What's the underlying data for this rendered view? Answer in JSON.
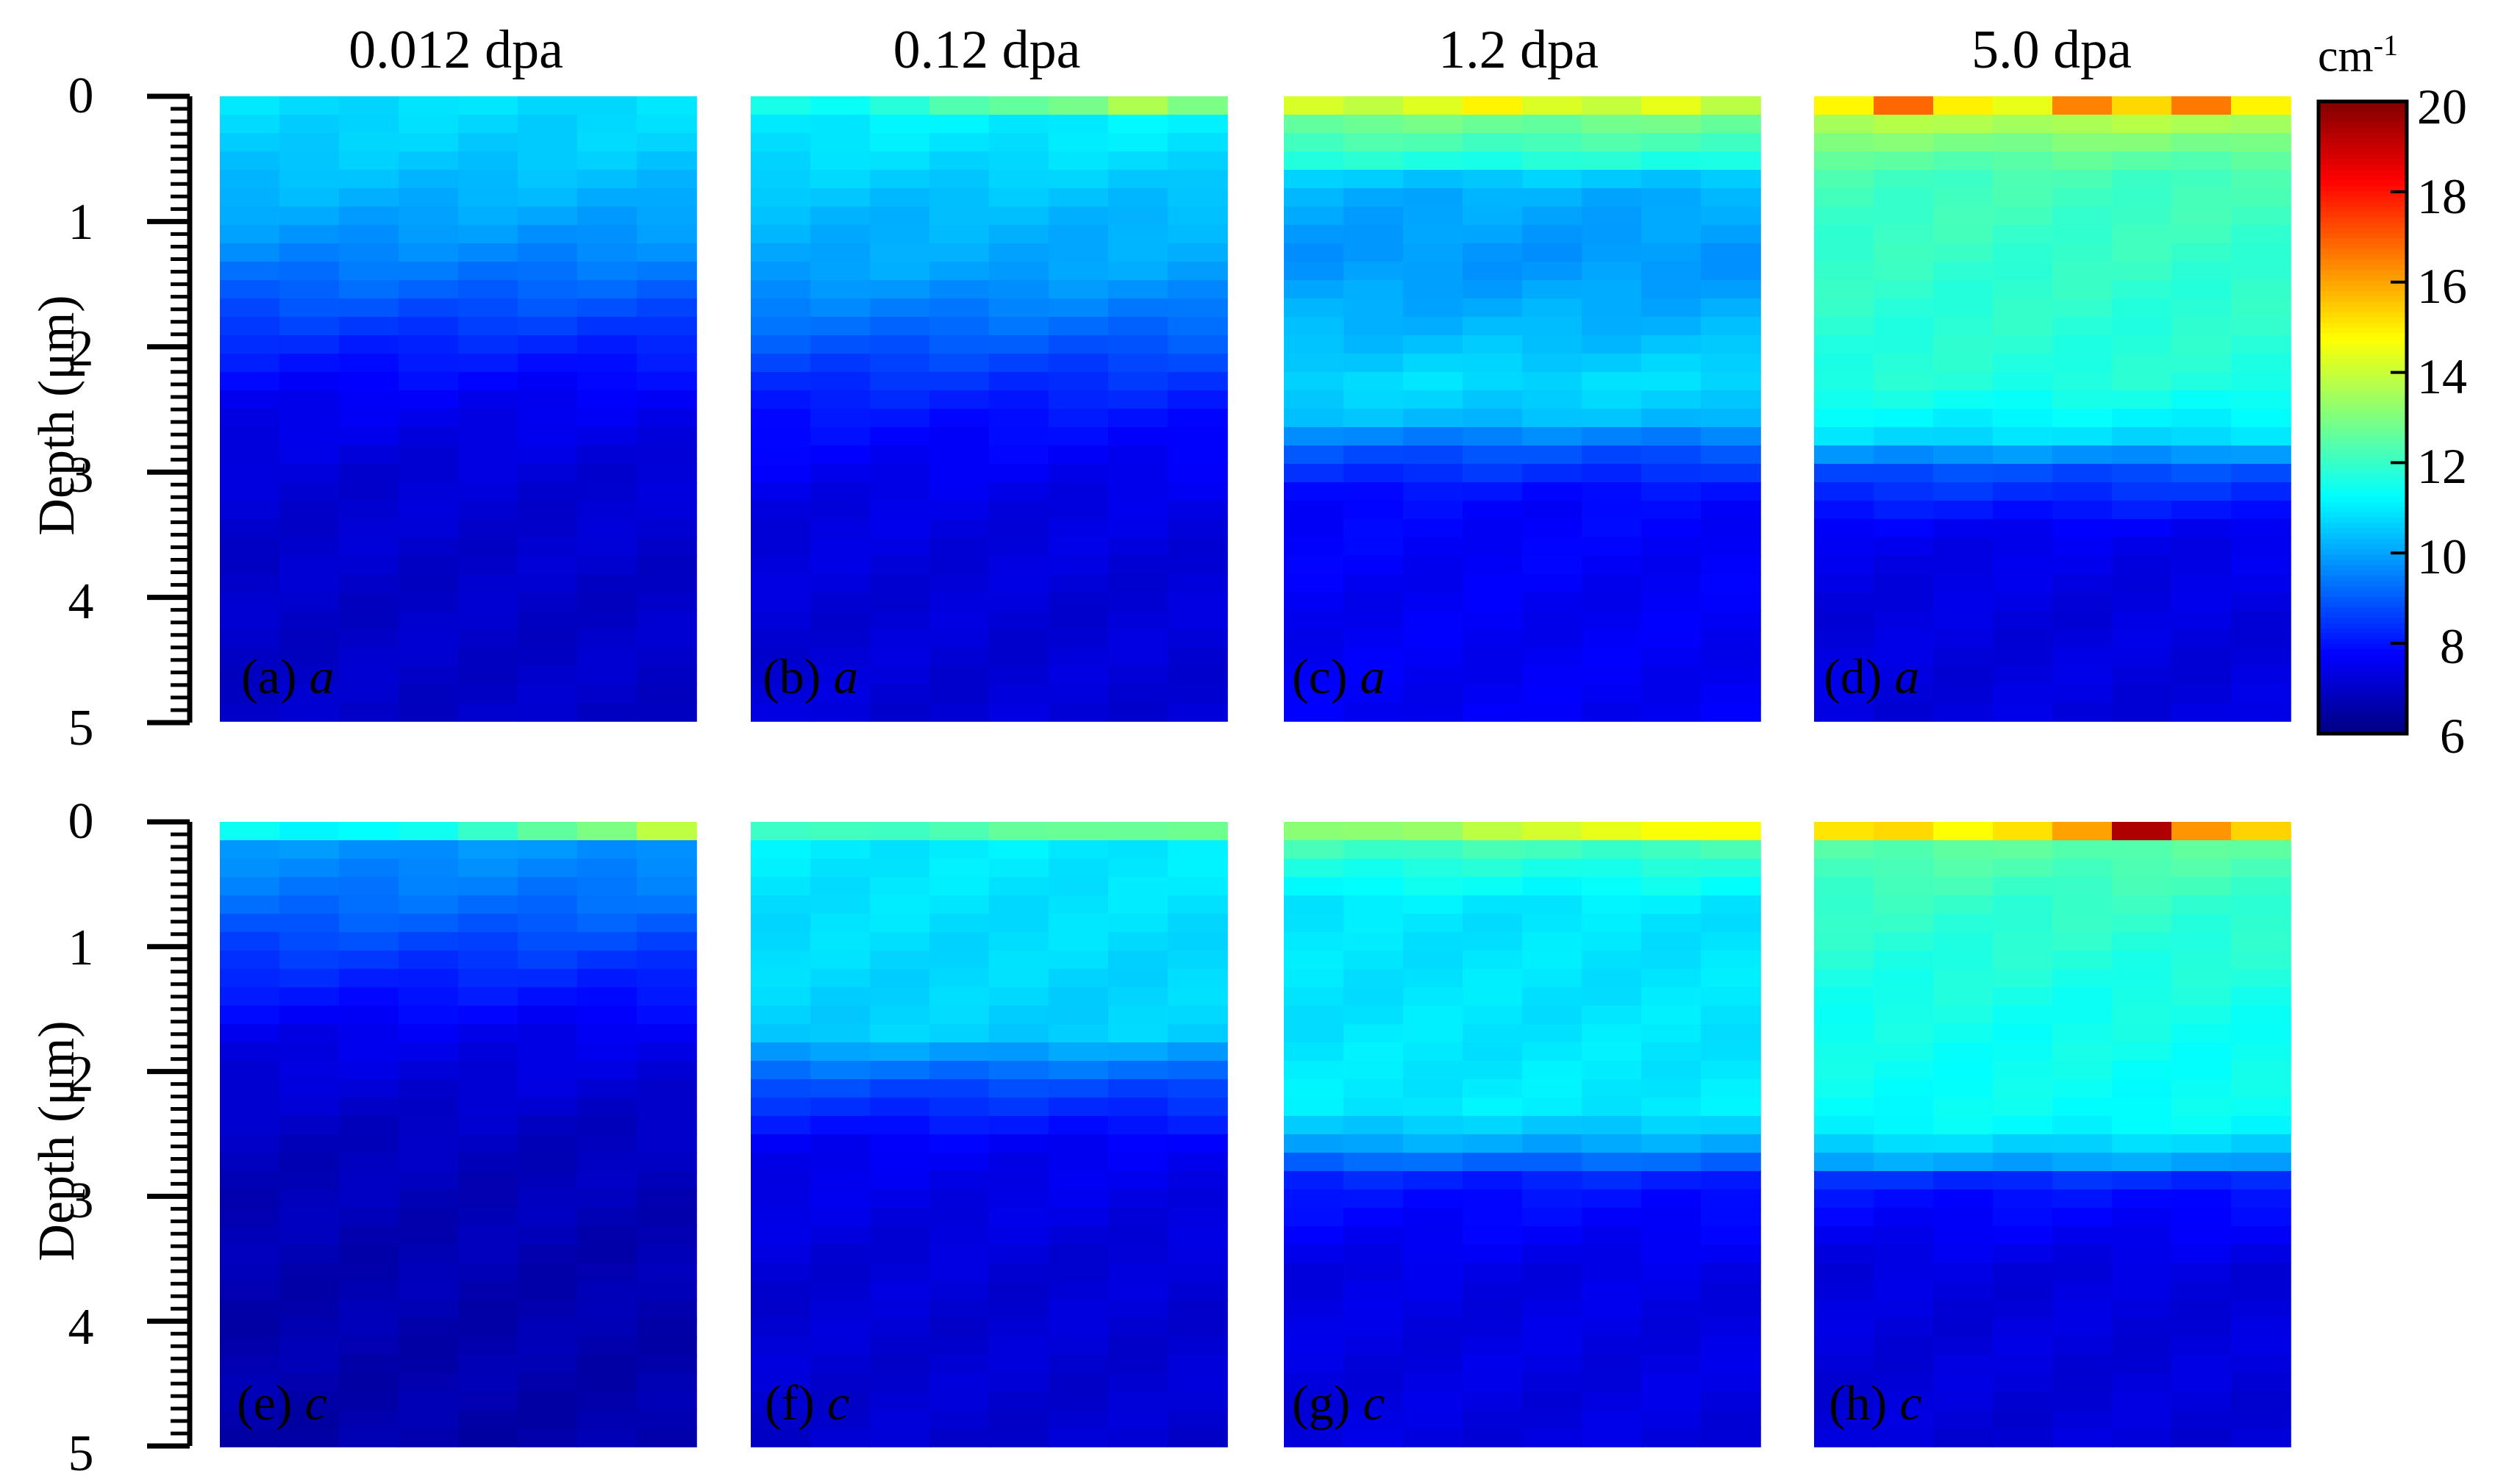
{
  "chart_data": {
    "type": "heatmap",
    "column_titles": [
      "0.012 dpa",
      "0.12 dpa",
      "1.2 dpa",
      "5.0 dpa"
    ],
    "ylabel": "Depth (μm)",
    "y_ticks": [
      "0",
      "1",
      "2",
      "3",
      "4",
      "5"
    ],
    "ylim": [
      0,
      5
    ],
    "colorbar": {
      "unit_base": "cm",
      "unit_exp": "-1",
      "ticks": [
        "20",
        "18",
        "16",
        "14",
        "12",
        "10",
        "8",
        "6"
      ],
      "range": [
        6,
        20
      ],
      "colormap": "jet"
    },
    "panels": [
      {
        "id": "a",
        "label": "(a)",
        "axis": "a",
        "dose": "0.012 dpa",
        "profile": [
          [
            0,
            10.8
          ],
          [
            0.4,
            10.6
          ],
          [
            0.8,
            10.2
          ],
          [
            1.2,
            9.7
          ],
          [
            1.6,
            9.0
          ],
          [
            2.0,
            8.2
          ],
          [
            2.4,
            7.6
          ],
          [
            3.0,
            7.2
          ],
          [
            4.0,
            7.0
          ],
          [
            5.0,
            7.0
          ]
        ],
        "surface": [
          10.8,
          10.8,
          10.8,
          10.8,
          10.8,
          10.8,
          10.8,
          10.8
        ]
      },
      {
        "id": "b",
        "label": "(b)",
        "axis": "a",
        "dose": "0.12 dpa",
        "profile": [
          [
            0,
            11.2
          ],
          [
            0.4,
            10.9
          ],
          [
            0.9,
            10.3
          ],
          [
            1.4,
            10.0
          ],
          [
            1.8,
            9.3
          ],
          [
            2.2,
            8.5
          ],
          [
            2.6,
            7.9
          ],
          [
            3.2,
            7.4
          ],
          [
            4.0,
            7.2
          ],
          [
            5.0,
            7.2
          ]
        ],
        "surface": [
          11.5,
          11.5,
          11.8,
          12.2,
          12.6,
          13.0,
          13.6,
          12.8
        ]
      },
      {
        "id": "c",
        "label": "(c)",
        "axis": "a",
        "dose": "1.2 dpa",
        "profile": [
          [
            0,
            13.6
          ],
          [
            0.2,
            12.8
          ],
          [
            0.5,
            11.8
          ],
          [
            0.7,
            10.2
          ],
          [
            1.3,
            9.8
          ],
          [
            1.9,
            10.3
          ],
          [
            2.3,
            10.8
          ],
          [
            2.6,
            10.3
          ],
          [
            2.8,
            9.0
          ],
          [
            3.2,
            7.8
          ],
          [
            4.0,
            7.6
          ],
          [
            5.0,
            7.6
          ]
        ],
        "surface": [
          14.3,
          14.0,
          14.2,
          14.8,
          14.4,
          14.0,
          14.3,
          13.8
        ]
      },
      {
        "id": "d",
        "label": "(d)",
        "axis": "a",
        "dose": "5.0 dpa",
        "profile": [
          [
            0,
            14.8
          ],
          [
            0.3,
            13.2
          ],
          [
            0.6,
            12.2
          ],
          [
            1.5,
            11.9
          ],
          [
            2.3,
            11.7
          ],
          [
            2.7,
            10.9
          ],
          [
            3.0,
            8.8
          ],
          [
            3.5,
            7.5
          ],
          [
            4.2,
            7.3
          ],
          [
            5.0,
            7.3
          ]
        ],
        "surface": [
          15.0,
          16.8,
          14.8,
          14.5,
          16.6,
          15.2,
          16.5,
          15.0
        ]
      },
      {
        "id": "e",
        "label": "(e)",
        "axis": "c",
        "dose": "0.012 dpa",
        "profile": [
          [
            0,
            11.5
          ],
          [
            0.2,
            9.8
          ],
          [
            0.7,
            9.2
          ],
          [
            1.2,
            8.3
          ],
          [
            1.7,
            7.5
          ],
          [
            2.5,
            6.9
          ],
          [
            3.5,
            6.7
          ],
          [
            5.0,
            6.6
          ]
        ],
        "surface": [
          11.5,
          11.0,
          11.2,
          11.6,
          12.0,
          12.4,
          13.0,
          14.0
        ]
      },
      {
        "id": "f",
        "label": "(f)",
        "axis": "c",
        "dose": "0.12 dpa",
        "profile": [
          [
            0,
            12.2
          ],
          [
            0.2,
            11.0
          ],
          [
            0.9,
            10.8
          ],
          [
            1.7,
            10.6
          ],
          [
            2.1,
            8.8
          ],
          [
            2.6,
            7.6
          ],
          [
            3.5,
            7.2
          ],
          [
            5.0,
            7.1
          ]
        ],
        "surface": [
          12.0,
          12.0,
          12.2,
          12.4,
          12.5,
          12.6,
          12.8,
          12.8
        ]
      },
      {
        "id": "g",
        "label": "(g)",
        "axis": "c",
        "dose": "1.2 dpa",
        "profile": [
          [
            0,
            13.0
          ],
          [
            0.3,
            11.8
          ],
          [
            0.7,
            10.9
          ],
          [
            1.5,
            10.9
          ],
          [
            2.3,
            11.0
          ],
          [
            2.6,
            10.0
          ],
          [
            2.9,
            8.0
          ],
          [
            3.6,
            7.4
          ],
          [
            5.0,
            7.3
          ]
        ],
        "surface": [
          13.0,
          13.2,
          13.5,
          13.8,
          14.0,
          14.5,
          14.8,
          14.6
        ]
      },
      {
        "id": "h",
        "label": "(h)",
        "axis": "c",
        "dose": "5.0 dpa",
        "profile": [
          [
            0,
            15.5
          ],
          [
            0.2,
            12.5
          ],
          [
            0.6,
            12.0
          ],
          [
            1.5,
            11.5
          ],
          [
            2.4,
            11.3
          ],
          [
            2.7,
            10.3
          ],
          [
            2.9,
            8.0
          ],
          [
            3.6,
            7.3
          ],
          [
            5.0,
            7.2
          ]
        ],
        "surface": [
          15.0,
          15.4,
          14.8,
          15.0,
          16.0,
          19.5,
          16.2,
          15.2
        ]
      }
    ]
  }
}
